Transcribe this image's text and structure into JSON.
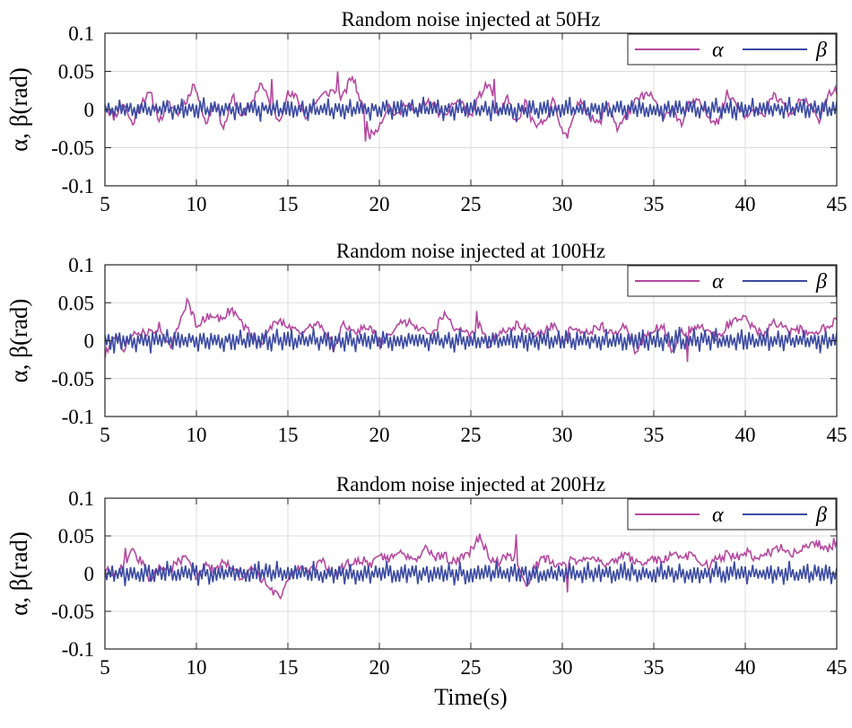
{
  "chart_data": [
    {
      "type": "line",
      "title": "Random noise injected at 50Hz",
      "ylabel": "α, β(rad)",
      "xlabel": "",
      "xlim": [
        5,
        45
      ],
      "ylim": [
        -0.1,
        0.1
      ],
      "xticks": [
        5,
        10,
        15,
        20,
        25,
        30,
        35,
        40,
        45
      ],
      "yticks": [
        0.1,
        0.05,
        0,
        -0.05,
        -0.1
      ],
      "ytick_labels": [
        "0.1",
        "0.05",
        "0",
        "-0.05",
        "-0.1"
      ],
      "grid": true,
      "legend_position": "top-right",
      "series": [
        {
          "name": "α",
          "color": "#b5489f",
          "sample_step": 0.5,
          "peaks": [
            [
              9.8,
              0.033
            ],
            [
              14.1,
              0.04
            ],
            [
              17.7,
              0.05
            ],
            [
              19.2,
              -0.042
            ],
            [
              26.3,
              0.04
            ],
            [
              30.3,
              -0.038
            ],
            [
              44.6,
              0.025
            ]
          ],
          "values": [
            0.005,
            -0.01,
            0.01,
            -0.02,
            0.012,
            0.02,
            -0.015,
            0.008,
            -0.005,
            0.015,
            0.03,
            -0.02,
            0.01,
            -0.025,
            0.018,
            -0.01,
            0.008,
            0.035,
            0.01,
            -0.015,
            0.02,
            0.015,
            -0.01,
            0.01,
            0.02,
            0.025,
            0.015,
            0.045,
            0.01,
            -0.035,
            -0.02,
            0.005,
            -0.01,
            0.012,
            -0.008,
            0.01,
            0.005,
            -0.012,
            0.008,
            0.01,
            -0.01,
            0.02,
            0.035,
            -0.01,
            0.015,
            -0.02,
            0.01,
            -0.025,
            -0.015,
            0.012,
            -0.03,
            -0.02,
            0.015,
            -0.01,
            -0.02,
            0.01,
            -0.025,
            -0.01,
            0.01,
            0.02,
            0.015,
            -0.015,
            0.005,
            -0.02,
            0.01,
            0.008,
            -0.01,
            -0.015,
            0.02,
            0.01,
            -0.008,
            0.005,
            -0.012,
            0.018,
            0.01,
            -0.01,
            0.015,
            0.005,
            -0.015,
            0.02,
            0.025
          ]
        },
        {
          "name": "β",
          "color": "#3b4ba3",
          "sample_step": 0.2,
          "amplitude": 0.013,
          "values": [
            0.008,
            -0.006,
            0.011,
            -0.009,
            0.004,
            -0.012,
            0.007,
            -0.003,
            0.01,
            -0.008,
            0.005,
            -0.011,
            0.009,
            -0.004,
            0.012,
            -0.007,
            0.003,
            -0.01,
            0.008,
            -0.005
          ]
        }
      ]
    },
    {
      "type": "line",
      "title": "Random noise injected at 100Hz",
      "ylabel": "α, β(rad)",
      "xlabel": "",
      "xlim": [
        5,
        45
      ],
      "ylim": [
        -0.1,
        0.1
      ],
      "xticks": [
        5,
        10,
        15,
        20,
        25,
        30,
        35,
        40,
        45
      ],
      "yticks": [
        0.1,
        0.05,
        0,
        -0.05,
        -0.1
      ],
      "ytick_labels": [
        "0.1",
        "0.05",
        "0",
        "-0.05",
        "-0.1"
      ],
      "grid": true,
      "legend_position": "top-right",
      "series": [
        {
          "name": "α",
          "color": "#b5489f",
          "sample_step": 0.5,
          "peaks": [
            [
              9.5,
              0.055
            ],
            [
              11.7,
              0.043
            ],
            [
              25.3,
              0.039
            ],
            [
              36.8,
              -0.028
            ]
          ],
          "values": [
            -0.02,
            0.01,
            -0.01,
            0.005,
            0.012,
            0.01,
            0.02,
            -0.01,
            0.015,
            0.055,
            0.02,
            0.03,
            0.035,
            0.025,
            0.04,
            0.02,
            0.01,
            -0.005,
            0.015,
            0.028,
            0.02,
            0.015,
            0.01,
            0.025,
            0.015,
            -0.01,
            0.02,
            0.01,
            0.015,
            0.02,
            -0.005,
            0.01,
            0.02,
            0.025,
            0.02,
            0.015,
            0.01,
            0.035,
            0.02,
            0.015,
            0.005,
            0.02,
            -0.01,
            0.012,
            0.01,
            0.02,
            0.015,
            0.005,
            0.01,
            0.02,
            -0.005,
            0.02,
            0.015,
            0.01,
            0.02,
            0.015,
            0.01,
            0.02,
            -0.015,
            0.005,
            0.015,
            0.02,
            -0.02,
            0.01,
            0.015,
            0.02,
            0.01,
            0.005,
            0.02,
            0.025,
            0.03,
            0.015,
            0.01,
            0.025,
            0.02,
            0.01,
            0.015,
            0.005,
            0.01,
            0.02,
            0.025
          ]
        },
        {
          "name": "β",
          "color": "#3b4ba3",
          "sample_step": 0.2,
          "amplitude": 0.015,
          "values": [
            0.009,
            -0.007,
            0.012,
            -0.01,
            0.005,
            -0.013,
            0.008,
            -0.004,
            0.011,
            -0.009,
            0.006,
            -0.012,
            0.01,
            -0.005,
            0.013,
            -0.008,
            0.004,
            -0.011,
            0.009,
            -0.006
          ]
        }
      ]
    },
    {
      "type": "line",
      "title": "Random noise injected at 200Hz",
      "ylabel": "α, β(rad)",
      "xlabel": "Time(s)",
      "xlim": [
        5,
        45
      ],
      "ylim": [
        -0.1,
        0.1
      ],
      "xticks": [
        5,
        10,
        15,
        20,
        25,
        30,
        35,
        40,
        45
      ],
      "yticks": [
        0.1,
        0.05,
        0,
        -0.05,
        -0.1
      ],
      "ytick_labels": [
        "0.1",
        "0.05",
        "0",
        "-0.05",
        "-0.1"
      ],
      "grid": true,
      "legend_position": "top-right",
      "series": [
        {
          "name": "α",
          "color": "#b5489f",
          "sample_step": 0.5,
          "peaks": [
            [
              6.1,
              0.034
            ],
            [
              14.6,
              -0.033
            ],
            [
              27.5,
              0.052
            ],
            [
              30.3,
              -0.025
            ],
            [
              44.8,
              0.047
            ]
          ],
          "values": [
            0.005,
            0.0,
            0.01,
            0.03,
            0.015,
            -0.01,
            0.01,
            0.005,
            0.015,
            0.02,
            -0.005,
            0.01,
            0.005,
            0.015,
            0.01,
            -0.01,
            0.005,
            -0.005,
            -0.02,
            -0.03,
            -0.01,
            0.01,
            0.005,
            0.01,
            0.015,
            -0.005,
            0.01,
            0.015,
            0.02,
            0.01,
            0.025,
            0.02,
            0.03,
            0.025,
            0.02,
            0.035,
            0.02,
            0.025,
            0.015,
            0.02,
            0.03,
            0.05,
            0.02,
            0.015,
            0.025,
            0.02,
            -0.02,
            0.01,
            0.02,
            0.015,
            0.01,
            0.02,
            0.015,
            0.025,
            0.02,
            0.01,
            0.02,
            0.025,
            0.015,
            0.01,
            0.02,
            0.015,
            0.03,
            0.02,
            0.025,
            0.015,
            0.01,
            0.02,
            0.025,
            0.02,
            0.03,
            0.02,
            0.025,
            0.03,
            0.035,
            0.025,
            0.03,
            0.035,
            0.04,
            0.03,
            0.045
          ]
        },
        {
          "name": "β",
          "color": "#3b4ba3",
          "sample_step": 0.2,
          "amplitude": 0.013,
          "values": [
            0.007,
            -0.009,
            0.01,
            -0.006,
            0.012,
            -0.01,
            0.005,
            -0.008,
            0.011,
            -0.004,
            0.009,
            -0.012,
            0.006,
            -0.007,
            0.013,
            -0.005,
            0.008,
            -0.011,
            0.004,
            -0.009
          ]
        }
      ]
    }
  ]
}
